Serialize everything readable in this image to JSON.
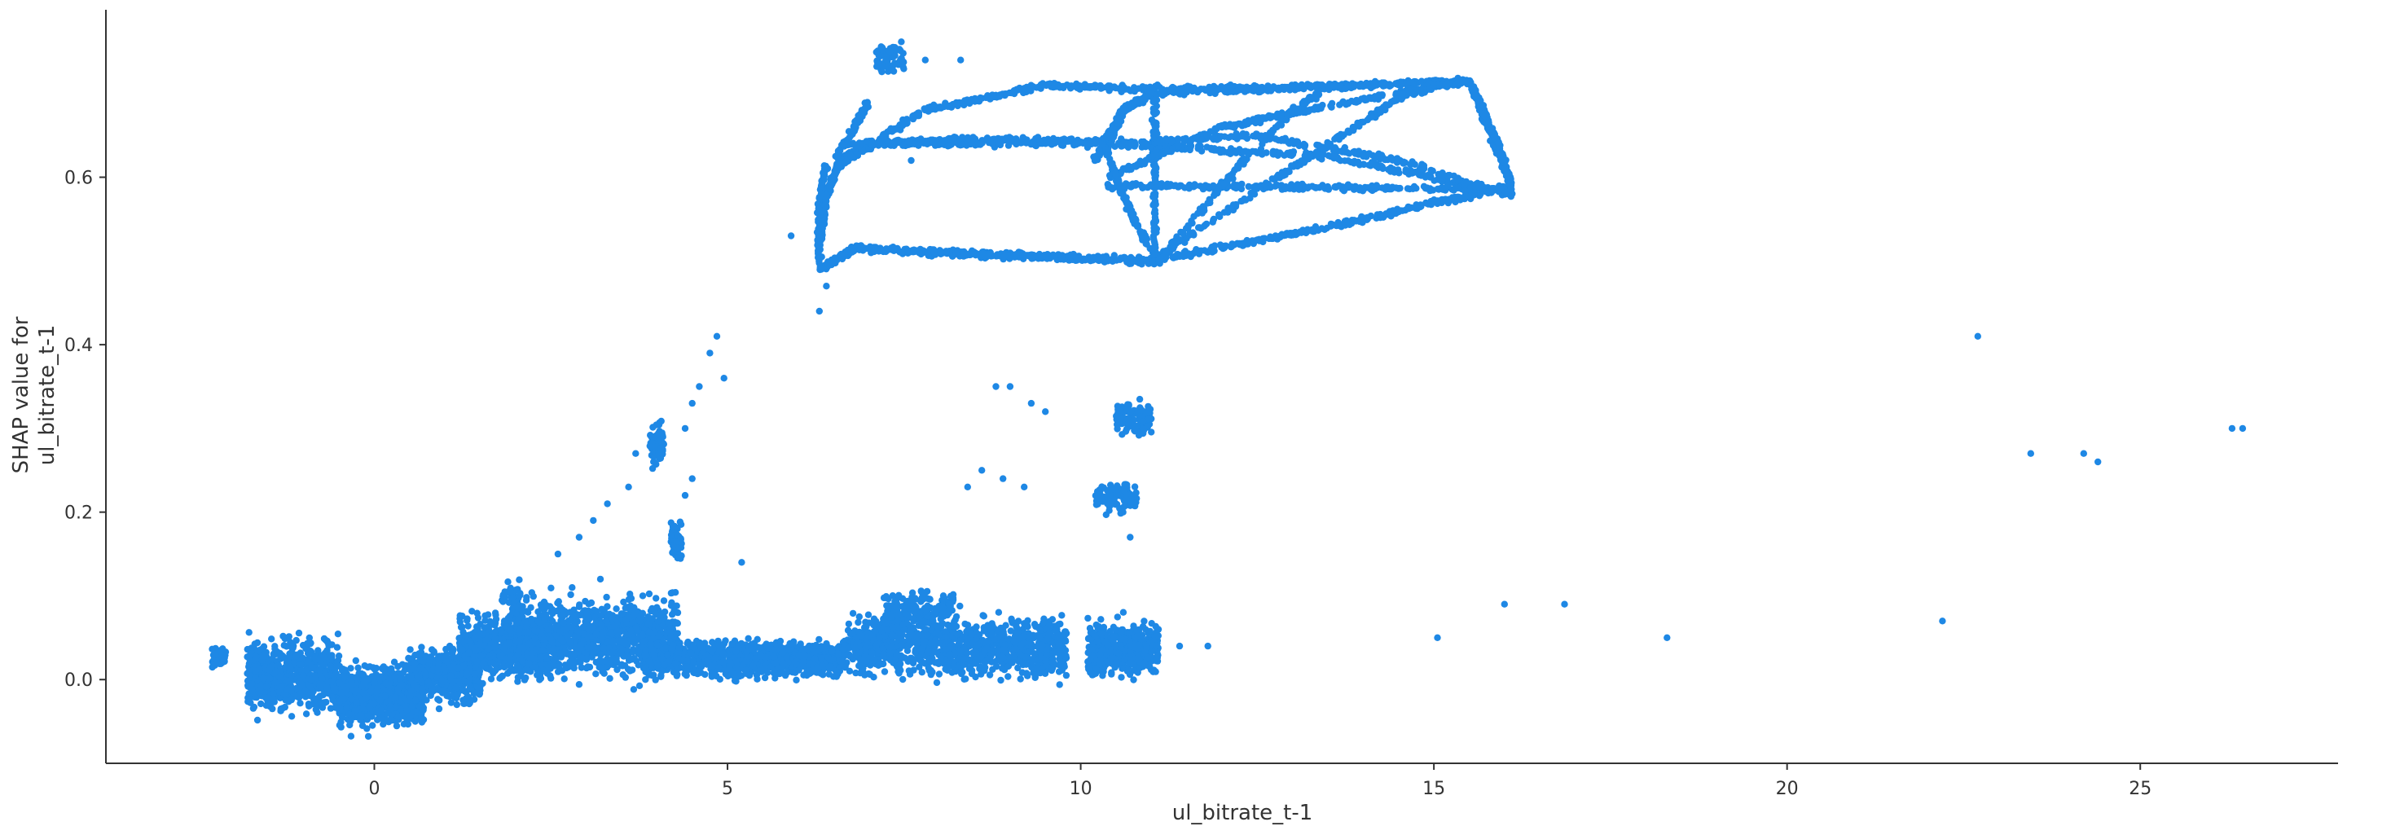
{
  "chart_data": {
    "type": "scatter",
    "xlabel": "ul_bitrate_t-1",
    "ylabel_lines": [
      "SHAP value for",
      "ul_bitrate_t-1"
    ],
    "xlim": [
      -3.8,
      27.8
    ],
    "ylim": [
      -0.1,
      0.8
    ],
    "x_ticks": [
      0,
      5,
      10,
      15,
      20,
      25
    ],
    "y_ticks": [
      0.0,
      0.2,
      0.4,
      0.6
    ],
    "grid": false,
    "legend": "none",
    "colors": {
      "points": "#1E88E5",
      "axis": "#333333"
    },
    "series": [
      {
        "clusters": [
          {
            "x": [
              -2.3,
              -2.1
            ],
            "y": [
              0.01,
              0.04
            ],
            "n": 60
          },
          {
            "x": [
              -1.8,
              -0.5
            ],
            "y": [
              -0.04,
              0.05
            ],
            "n": 700
          },
          {
            "x": [
              -0.5,
              0.7
            ],
            "y": [
              -0.06,
              0.02
            ],
            "n": 900
          },
          {
            "x": [
              0.5,
              1.5
            ],
            "y": [
              -0.03,
              0.04
            ],
            "n": 500
          },
          {
            "x": [
              1.2,
              2.5
            ],
            "y": [
              0.0,
              0.08
            ],
            "n": 700
          },
          {
            "x": [
              2.0,
              4.3
            ],
            "y": [
              0.0,
              0.1
            ],
            "n": 1100
          },
          {
            "x": [
              3.8,
              6.7
            ],
            "y": [
              0.0,
              0.05
            ],
            "n": 1000
          },
          {
            "x": [
              6.7,
              9.8
            ],
            "y": [
              0.0,
              0.08
            ],
            "n": 1100
          },
          {
            "x": [
              10.1,
              11.1
            ],
            "y": [
              0.0,
              0.07
            ],
            "n": 450
          },
          {
            "x": [
              7.2,
              8.2
            ],
            "y": [
              0.06,
              0.11
            ],
            "n": 150
          },
          {
            "x": [
              1.8,
              2.1
            ],
            "y": [
              0.07,
              0.13
            ],
            "n": 40
          },
          {
            "x": [
              3.9,
              4.1
            ],
            "y": [
              0.25,
              0.31
            ],
            "n": 70
          },
          {
            "x": [
              4.2,
              4.35
            ],
            "y": [
              0.14,
              0.19
            ],
            "n": 70
          },
          {
            "x": [
              10.5,
              11.0
            ],
            "y": [
              0.29,
              0.33
            ],
            "n": 120
          },
          {
            "x": [
              10.2,
              10.8
            ],
            "y": [
              0.2,
              0.24
            ],
            "n": 100
          },
          {
            "x": [
              7.1,
              7.5
            ],
            "y": [
              0.72,
              0.76
            ],
            "n": 60
          }
        ],
        "sparse_points": [
          [
            2.6,
            0.15
          ],
          [
            2.9,
            0.17
          ],
          [
            3.1,
            0.19
          ],
          [
            3.3,
            0.21
          ],
          [
            3.6,
            0.23
          ],
          [
            3.7,
            0.27
          ],
          [
            4.4,
            0.3
          ],
          [
            4.5,
            0.33
          ],
          [
            4.6,
            0.35
          ],
          [
            4.75,
            0.39
          ],
          [
            4.85,
            0.41
          ],
          [
            4.95,
            0.36
          ],
          [
            4.5,
            0.24
          ],
          [
            4.4,
            0.22
          ],
          [
            3.2,
            0.12
          ],
          [
            2.8,
            0.11
          ],
          [
            3.8,
            0.1
          ],
          [
            5.2,
            0.14
          ],
          [
            8.8,
            0.35
          ],
          [
            9.0,
            0.35
          ],
          [
            9.3,
            0.33
          ],
          [
            9.5,
            0.32
          ],
          [
            8.6,
            0.25
          ],
          [
            8.9,
            0.24
          ],
          [
            9.2,
            0.23
          ],
          [
            8.4,
            0.23
          ],
          [
            10.6,
            0.2
          ],
          [
            10.7,
            0.17
          ],
          [
            11.1,
            0.06
          ],
          [
            11.4,
            0.04
          ],
          [
            11.8,
            0.04
          ],
          [
            15.05,
            0.05
          ],
          [
            16.0,
            0.09
          ],
          [
            16.85,
            0.09
          ],
          [
            18.3,
            0.05
          ],
          [
            22.2,
            0.07
          ],
          [
            22.7,
            0.41
          ],
          [
            23.45,
            0.27
          ],
          [
            24.2,
            0.27
          ],
          [
            24.4,
            0.26
          ],
          [
            26.3,
            0.3
          ],
          [
            26.45,
            0.3
          ],
          [
            5.9,
            0.53
          ],
          [
            6.3,
            0.44
          ],
          [
            6.4,
            0.47
          ],
          [
            7.6,
            0.62
          ],
          [
            7.8,
            0.74
          ],
          [
            8.3,
            0.74
          ],
          [
            6.9,
            0.68
          ]
        ],
        "curves": [
          {
            "points": [
              [
                6.3,
                0.52
              ],
              [
                6.4,
                0.58
              ],
              [
                6.6,
                0.62
              ],
              [
                7.0,
                0.64
              ],
              [
                8.5,
                0.645
              ],
              [
                10.3,
                0.643
              ]
            ],
            "n": 450
          },
          {
            "points": [
              [
                6.3,
                0.49
              ],
              [
                6.8,
                0.515
              ],
              [
                8.0,
                0.51
              ],
              [
                9.5,
                0.505
              ],
              [
                11.0,
                0.5
              ]
            ],
            "n": 450
          },
          {
            "points": [
              [
                6.5,
                0.61
              ],
              [
                7.8,
                0.68
              ],
              [
                9.5,
                0.71
              ],
              [
                11.0,
                0.705
              ],
              [
                13.5,
                0.708
              ],
              [
                15.5,
                0.715
              ],
              [
                16.1,
                0.59
              ]
            ],
            "n": 650
          },
          {
            "points": [
              [
                10.2,
                0.62
              ],
              [
                10.6,
                0.68
              ],
              [
                11.0,
                0.7
              ],
              [
                12.5,
                0.705
              ],
              [
                15.5,
                0.715
              ]
            ],
            "n": 300
          },
          {
            "points": [
              [
                6.6,
                0.64
              ],
              [
                10.5,
                0.64
              ],
              [
                13.5,
                0.625
              ],
              [
                16.1,
                0.58
              ]
            ],
            "n": 400
          },
          {
            "points": [
              [
                10.3,
                0.59
              ],
              [
                13.5,
                0.588
              ],
              [
                16.1,
                0.585
              ]
            ],
            "n": 250
          },
          {
            "points": [
              [
                11.0,
                0.5
              ],
              [
                13.5,
                0.54
              ],
              [
                16.1,
                0.59
              ]
            ],
            "n": 300
          },
          {
            "points": [
              [
                10.4,
                0.6
              ],
              [
                12.0,
                0.66
              ],
              [
                13.8,
                0.69
              ],
              [
                15.5,
                0.715
              ]
            ],
            "n": 250
          },
          {
            "points": [
              [
                10.5,
                0.64
              ],
              [
                12.5,
                0.65
              ],
              [
                14.5,
                0.62
              ],
              [
                16.1,
                0.58
              ]
            ],
            "n": 200
          },
          {
            "points": [
              [
                11.0,
                0.5
              ],
              [
                12.8,
                0.6
              ],
              [
                14.6,
                0.7
              ],
              [
                15.5,
                0.715
              ]
            ],
            "n": 200
          },
          {
            "points": [
              [
                10.3,
                0.65
              ],
              [
                10.5,
                0.6
              ],
              [
                10.8,
                0.54
              ],
              [
                11.1,
                0.5
              ]
            ],
            "n": 150
          },
          {
            "points": [
              [
                11.05,
                0.7
              ],
              [
                11.05,
                0.5
              ]
            ],
            "n": 120
          },
          {
            "points": [
              [
                11.0,
                0.7
              ],
              [
                10.6,
                0.68
              ],
              [
                10.4,
                0.64
              ]
            ],
            "n": 100
          },
          {
            "points": [
              [
                11.1,
                0.5
              ],
              [
                11.6,
                0.55
              ],
              [
                12.2,
                0.61
              ],
              [
                13.0,
                0.68
              ],
              [
                13.6,
                0.71
              ]
            ],
            "n": 150
          },
          {
            "points": [
              [
                16.1,
                0.58
              ],
              [
                16.0,
                0.62
              ],
              [
                15.7,
                0.68
              ],
              [
                15.5,
                0.715
              ]
            ],
            "n": 120
          },
          {
            "points": [
              [
                6.3,
                0.5
              ],
              [
                6.3,
                0.57
              ],
              [
                6.4,
                0.62
              ]
            ],
            "n": 80
          },
          {
            "points": [
              [
                6.5,
                0.62
              ],
              [
                6.8,
                0.66
              ],
              [
                7.0,
                0.69
              ]
            ],
            "n": 60
          }
        ]
      }
    ]
  }
}
